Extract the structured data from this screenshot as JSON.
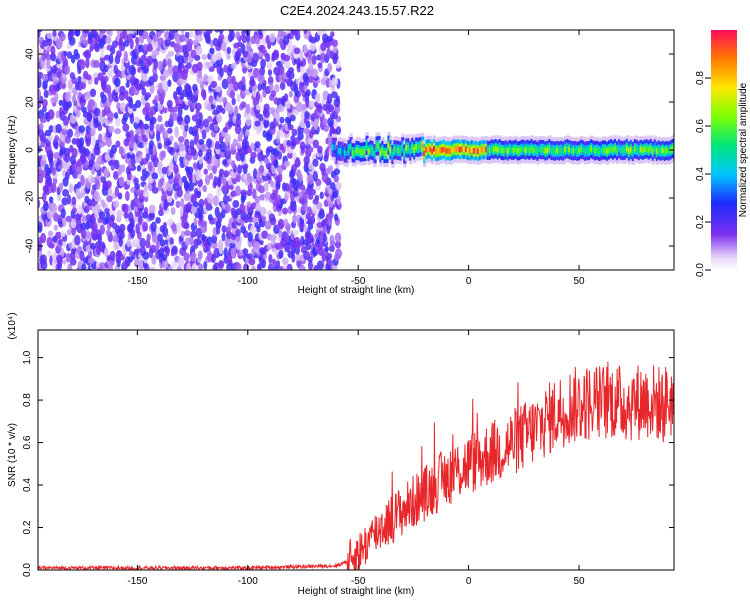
{
  "title": "C2E4.2024.243.15.57.R22",
  "chart_data": [
    {
      "type": "heatmap",
      "title": "C2E4.2024.243.15.57.R22",
      "xlabel": "Height of straight line (km)",
      "ylabel": "Frequency (Hz)",
      "xlim": [
        -195,
        93
      ],
      "ylim": [
        -50,
        50
      ],
      "xticks": [
        -150,
        -100,
        -50,
        0,
        50
      ],
      "yticks": [
        -40,
        -20,
        0,
        20,
        40
      ],
      "colorbar": {
        "label": "Normalized spectral amplitude",
        "range": [
          0,
          1
        ],
        "ticks": [
          0.0,
          0.2,
          0.4,
          0.6,
          0.8
        ]
      },
      "noise_region": {
        "x": [
          -195,
          -60
        ],
        "y": [
          -50,
          50
        ],
        "amplitude": [
          0.05,
          0.25
        ]
      },
      "signal_band": {
        "x": [
          -62,
          93
        ],
        "center_freq": 0,
        "half_width": 4,
        "peak_amplitude_x": [
          -22,
          8
        ]
      }
    },
    {
      "type": "line",
      "xlabel": "Height of straight line (km)",
      "ylabel": "SNR (10 * v/v)",
      "y_multiplier": "(x10⁴)",
      "xlim": [
        -195,
        93
      ],
      "ylim": [
        0,
        1.13
      ],
      "xticks": [
        -150,
        -100,
        -50,
        0,
        50
      ],
      "yticks": [
        0.0,
        0.2,
        0.4,
        0.6,
        0.8,
        1.0
      ],
      "color": "#e8262a",
      "series": [
        {
          "x": [
            -195,
            -150,
            -100,
            -60,
            -55,
            -50,
            -45,
            -40,
            -35,
            -30,
            -25,
            -20,
            -15,
            -10,
            -5,
            0,
            5,
            10,
            15,
            20,
            25,
            30,
            35,
            40,
            45,
            50,
            55,
            60,
            65,
            70,
            75,
            80,
            85,
            88,
            90,
            92,
            93
          ],
          "values": [
            0.01,
            0.01,
            0.01,
            0.02,
            0.04,
            0.08,
            0.14,
            0.2,
            0.24,
            0.28,
            0.32,
            0.36,
            0.4,
            0.44,
            0.47,
            0.5,
            0.52,
            0.55,
            0.57,
            0.6,
            0.63,
            0.66,
            0.7,
            0.74,
            0.77,
            0.78,
            0.79,
            0.79,
            0.8,
            0.78,
            0.79,
            0.8,
            0.79,
            0.77,
            0.8,
            0.8,
            0.79
          ]
        }
      ]
    }
  ]
}
